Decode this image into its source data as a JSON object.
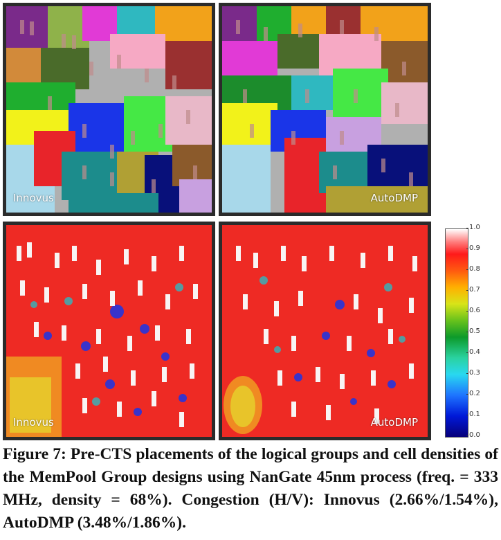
{
  "panels": {
    "innovus_groups": {
      "label": "Innovus"
    },
    "autodmp_groups": {
      "label": "AutoDMP"
    },
    "innovus_density": {
      "label": "Innovus"
    },
    "autodmp_density": {
      "label": "AutoDMP"
    }
  },
  "colorbar": {
    "ticks": [
      "1.0",
      "0.9",
      "0.8",
      "0.7",
      "0.6",
      "0.5",
      "0.4",
      "0.3",
      "0.2",
      "0.1",
      "0.0"
    ],
    "scale": [
      "#07007a",
      "#0018d8",
      "#1e74ff",
      "#29d8f0",
      "#0c9a2a",
      "#68c21c",
      "#d8e418",
      "#ffb000",
      "#ff5a10",
      "#ff1a1a",
      "#ffffff"
    ]
  },
  "caption": {
    "text": "Figure 7: Pre-CTS placements of the logical groups and cell densities of the MemPool Group designs using NanGate 45nm process (freq. = 333 MHz, density = 68%). Congestion (H/V): Innovus (2.66%/1.54%), AutoDMP (3.48%/1.86%)."
  }
}
